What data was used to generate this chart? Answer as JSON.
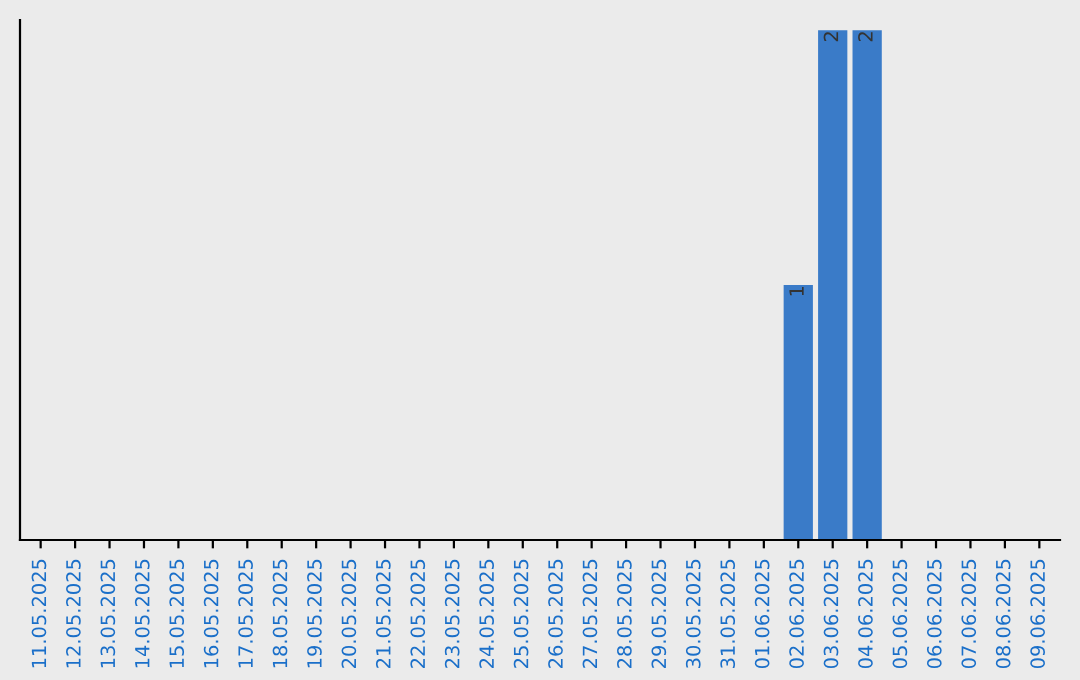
{
  "chart_data": {
    "type": "bar",
    "categories": [
      "11.05.2025",
      "12.05.2025",
      "13.05.2025",
      "14.05.2025",
      "15.05.2025",
      "16.05.2025",
      "17.05.2025",
      "18.05.2025",
      "19.05.2025",
      "20.05.2025",
      "21.05.2025",
      "22.05.2025",
      "23.05.2025",
      "24.05.2025",
      "25.05.2025",
      "26.05.2025",
      "27.05.2025",
      "28.05.2025",
      "29.05.2025",
      "30.05.2025",
      "31.05.2025",
      "01.06.2025",
      "02.06.2025",
      "03.06.2025",
      "04.06.2025",
      "05.06.2025",
      "06.06.2025",
      "07.06.2025",
      "08.06.2025",
      "09.06.2025"
    ],
    "values": [
      null,
      null,
      null,
      null,
      null,
      null,
      null,
      null,
      null,
      null,
      null,
      null,
      null,
      null,
      null,
      null,
      null,
      null,
      null,
      null,
      null,
      null,
      1,
      2,
      2,
      null,
      null,
      null,
      null,
      null
    ],
    "data_labels": true,
    "color": "#3a7bc8",
    "ylim": [
      0,
      2.04
    ],
    "tick_labels": "x",
    "grid": false,
    "legend": false
  }
}
